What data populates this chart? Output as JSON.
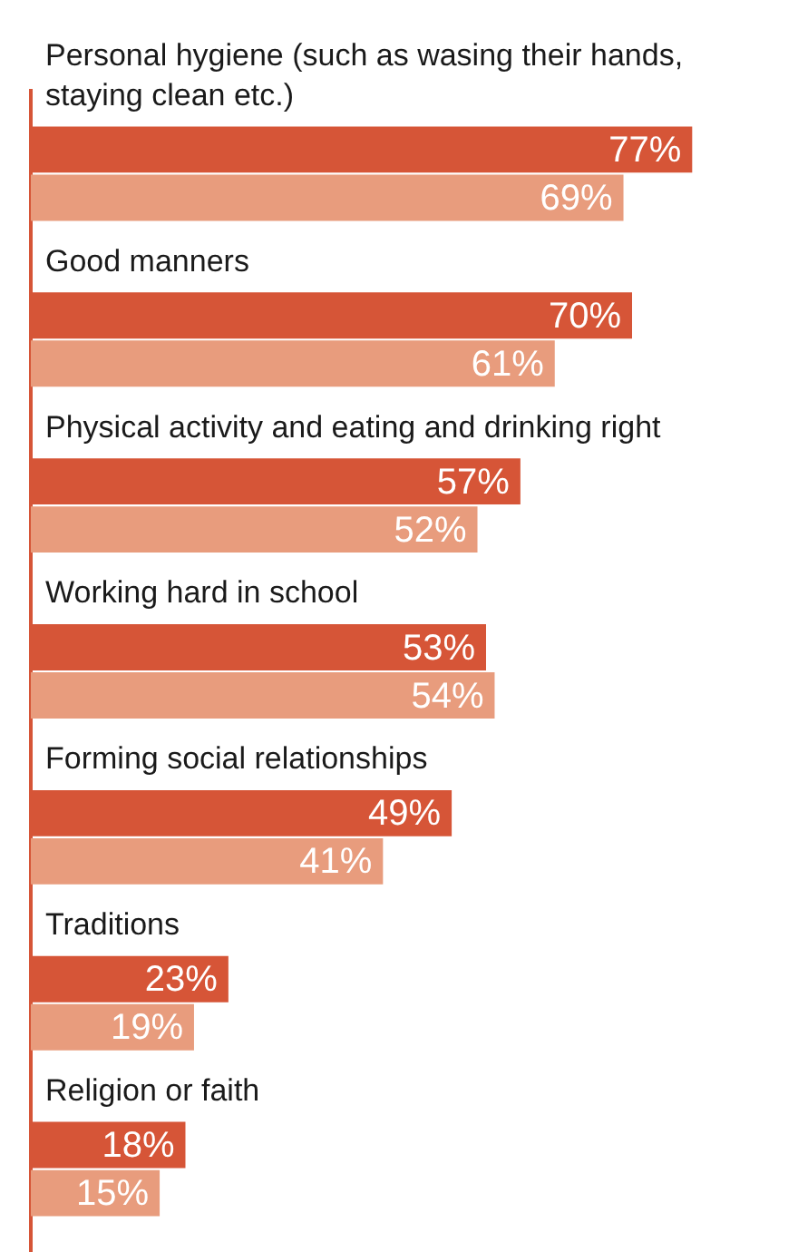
{
  "chart_data": {
    "type": "bar",
    "orientation": "horizontal",
    "categories": [
      "Personal hygiene (such as wasing their hands, staying clean etc.)",
      "Good manners",
      "Physical activity and eating and drinking right",
      "Working hard in school",
      "Forming social relationships",
      "Traditions",
      "Religion or faith"
    ],
    "series": [
      {
        "color": "#d65537",
        "values": [
          77,
          70,
          57,
          53,
          49,
          23,
          18
        ],
        "value_labels": [
          "77%",
          "70%",
          "57%",
          "53%",
          "49%",
          "23%",
          "18%"
        ]
      },
      {
        "color": "#e89c7d",
        "values": [
          69,
          61,
          52,
          54,
          41,
          19,
          15
        ],
        "value_labels": [
          "69%",
          "61%",
          "52%",
          "54%",
          "41%",
          "19%",
          "15%"
        ]
      }
    ],
    "legend": false
  }
}
